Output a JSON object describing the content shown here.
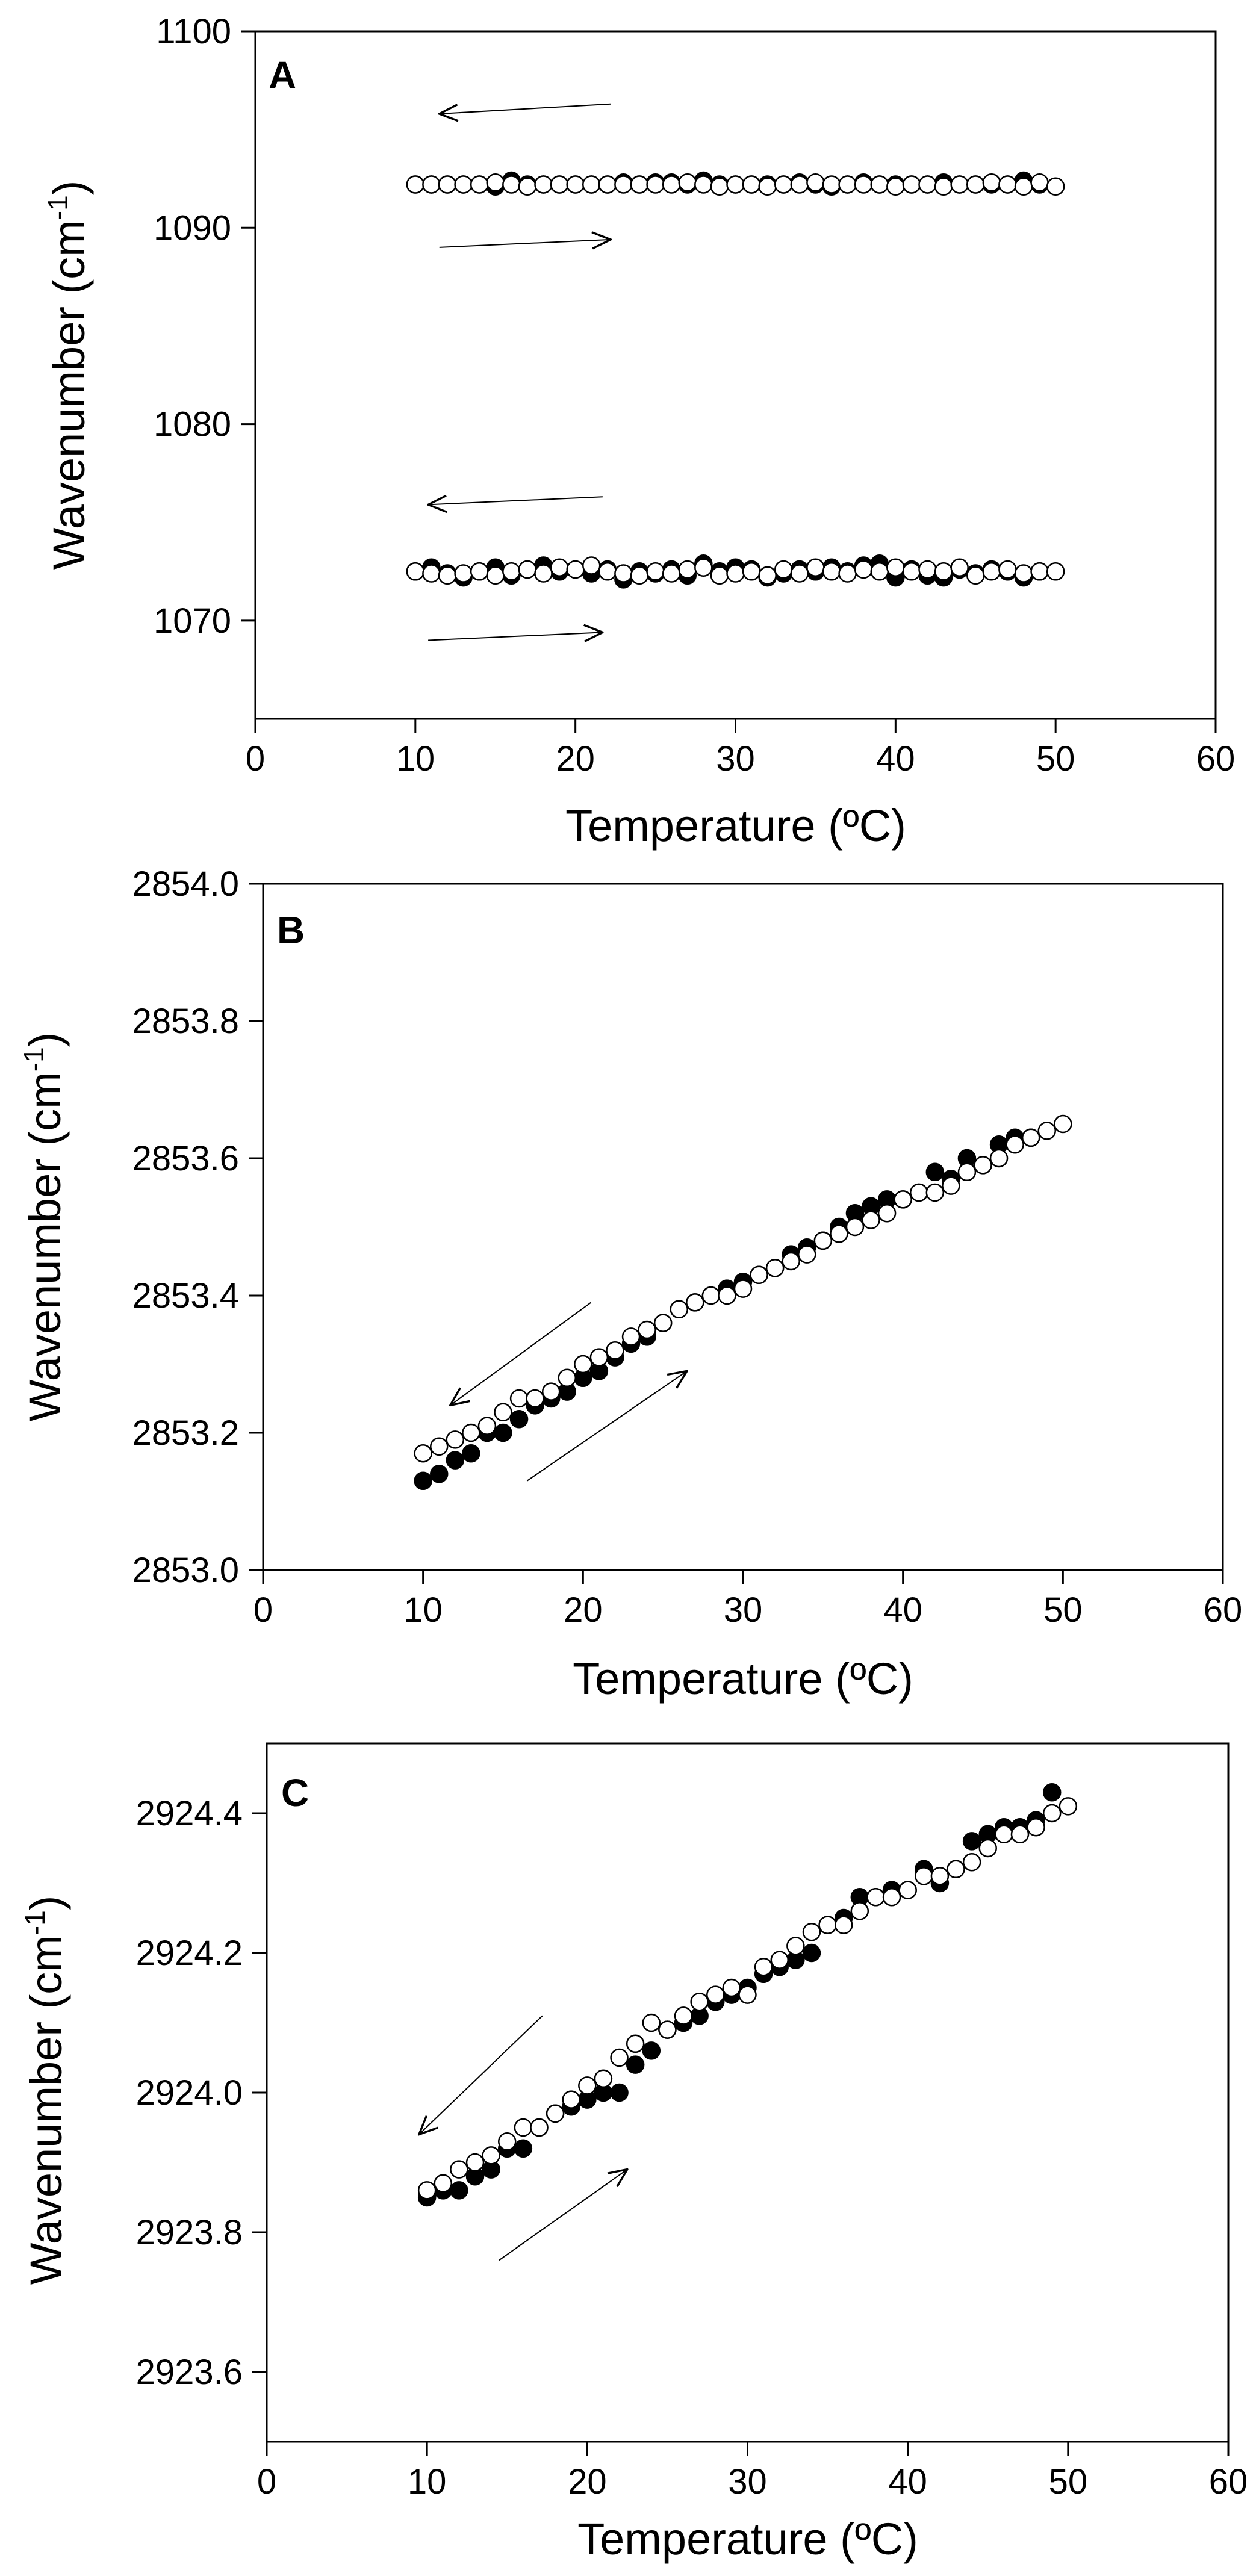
{
  "figure": {
    "description_labels": [
      "A",
      "B",
      "C"
    ]
  },
  "chart_data": [
    {
      "type": "scatter",
      "panel_label": "A",
      "xlabel": "Temperature (ºC)",
      "ylabel_main": "Wavenumber (cm",
      "ylabel_sup": "-1",
      "ylabel_close": ")",
      "xlim": [
        0,
        60
      ],
      "ylim": [
        1065,
        1100
      ],
      "xticks": [
        0,
        10,
        20,
        30,
        40,
        50,
        60
      ],
      "yticks": [
        1070,
        1080,
        1090,
        1100
      ],
      "yticks_labels": [
        "1070",
        "1080",
        "1090",
        "1100"
      ],
      "arrows": [
        {
          "direction": "cooling",
          "from": [
            22.2,
            1096.3
          ],
          "to": [
            11.5,
            1095.8
          ]
        },
        {
          "direction": "heating",
          "from": [
            11.5,
            1089.0
          ],
          "to": [
            22.2,
            1089.4
          ]
        },
        {
          "direction": "cooling",
          "from": [
            21.7,
            1076.3
          ],
          "to": [
            10.8,
            1075.9
          ]
        },
        {
          "direction": "heating",
          "from": [
            10.8,
            1069.0
          ],
          "to": [
            21.7,
            1069.4
          ]
        }
      ],
      "series": [
        {
          "name": "heating (filled, upper band)",
          "marker": "filled",
          "x": [
            10,
            11,
            12,
            13,
            14,
            15,
            16,
            17,
            18,
            19,
            20,
            21,
            22,
            23,
            24,
            25,
            26,
            27,
            28,
            29,
            30,
            31,
            32,
            33,
            34,
            35,
            36,
            37,
            38,
            39,
            40,
            41,
            42,
            43,
            44,
            45,
            46,
            47,
            48,
            49
          ],
          "y": [
            1092.2,
            1092.2,
            1092.2,
            1092.2,
            1092.2,
            1092.1,
            1092.4,
            1092.2,
            1092.2,
            1092.2,
            1092.2,
            1092.2,
            1092.2,
            1092.3,
            1092.2,
            1092.3,
            1092.3,
            1092.2,
            1092.4,
            1092.2,
            1092.2,
            1092.2,
            1092.2,
            1092.2,
            1092.3,
            1092.2,
            1092.1,
            1092.2,
            1092.3,
            1092.2,
            1092.2,
            1092.2,
            1092.2,
            1092.3,
            1092.2,
            1092.2,
            1092.2,
            1092.2,
            1092.4,
            1092.2
          ]
        },
        {
          "name": "cooling (open, upper band)",
          "marker": "open",
          "x": [
            10,
            11,
            12,
            13,
            14,
            15,
            16,
            17,
            18,
            19,
            20,
            21,
            22,
            23,
            24,
            25,
            26,
            27,
            28,
            29,
            30,
            31,
            32,
            33,
            34,
            35,
            36,
            37,
            38,
            39,
            40,
            41,
            42,
            43,
            44,
            45,
            46,
            47,
            48,
            49,
            50
          ],
          "y": [
            1092.2,
            1092.2,
            1092.2,
            1092.2,
            1092.2,
            1092.3,
            1092.2,
            1092.1,
            1092.2,
            1092.2,
            1092.2,
            1092.2,
            1092.2,
            1092.2,
            1092.2,
            1092.2,
            1092.2,
            1092.3,
            1092.2,
            1092.1,
            1092.2,
            1092.2,
            1092.1,
            1092.2,
            1092.2,
            1092.3,
            1092.2,
            1092.2,
            1092.2,
            1092.2,
            1092.1,
            1092.2,
            1092.2,
            1092.1,
            1092.2,
            1092.2,
            1092.3,
            1092.2,
            1092.1,
            1092.3,
            1092.1
          ]
        },
        {
          "name": "heating (filled, lower band)",
          "marker": "filled",
          "x": [
            10,
            11,
            12,
            13,
            14,
            15,
            16,
            17,
            18,
            19,
            20,
            21,
            22,
            23,
            24,
            25,
            26,
            27,
            28,
            29,
            30,
            31,
            32,
            33,
            34,
            35,
            36,
            37,
            38,
            39,
            40,
            41,
            42,
            43,
            44,
            45,
            46,
            47,
            48,
            49
          ],
          "y": [
            1072.5,
            1072.7,
            1072.4,
            1072.2,
            1072.5,
            1072.7,
            1072.3,
            1072.6,
            1072.8,
            1072.5,
            1072.6,
            1072.4,
            1072.6,
            1072.1,
            1072.5,
            1072.4,
            1072.6,
            1072.3,
            1072.9,
            1072.5,
            1072.7,
            1072.6,
            1072.2,
            1072.4,
            1072.6,
            1072.5,
            1072.7,
            1072.5,
            1072.8,
            1072.9,
            1072.2,
            1072.6,
            1072.3,
            1072.2,
            1072.6,
            1072.4,
            1072.6,
            1072.5,
            1072.2,
            1072.5
          ]
        },
        {
          "name": "cooling (open, lower band)",
          "marker": "open",
          "x": [
            10,
            11,
            12,
            13,
            14,
            15,
            16,
            17,
            18,
            19,
            20,
            21,
            22,
            23,
            24,
            25,
            26,
            27,
            28,
            29,
            30,
            31,
            32,
            33,
            34,
            35,
            36,
            37,
            38,
            39,
            40,
            41,
            42,
            43,
            44,
            45,
            46,
            47,
            48,
            49,
            50
          ],
          "y": [
            1072.5,
            1072.4,
            1072.3,
            1072.4,
            1072.5,
            1072.3,
            1072.5,
            1072.6,
            1072.4,
            1072.7,
            1072.6,
            1072.8,
            1072.5,
            1072.4,
            1072.3,
            1072.5,
            1072.4,
            1072.6,
            1072.7,
            1072.3,
            1072.4,
            1072.5,
            1072.3,
            1072.6,
            1072.4,
            1072.7,
            1072.5,
            1072.4,
            1072.6,
            1072.5,
            1072.7,
            1072.5,
            1072.6,
            1072.5,
            1072.7,
            1072.3,
            1072.5,
            1072.6,
            1072.4,
            1072.5,
            1072.5
          ]
        }
      ]
    },
    {
      "type": "scatter",
      "panel_label": "B",
      "xlabel": "Temperature (ºC)",
      "ylabel_main": "Wavenumber (cm",
      "ylabel_sup": "-1",
      "ylabel_close": ")",
      "xlim": [
        0,
        60
      ],
      "ylim": [
        2853.0,
        2854.0
      ],
      "xticks": [
        0,
        10,
        20,
        30,
        40,
        50,
        60
      ],
      "yticks": [
        2853.0,
        2853.2,
        2853.4,
        2853.6,
        2853.8,
        2854.0
      ],
      "yticks_labels": [
        "2853.0",
        "2853.2",
        "2853.4",
        "2853.6",
        "2853.8",
        "2854.0"
      ],
      "arrows": [
        {
          "direction": "cooling",
          "from": [
            20.5,
            2853.39
          ],
          "to": [
            11.7,
            2853.24
          ]
        },
        {
          "direction": "heating",
          "from": [
            16.5,
            2853.13
          ],
          "to": [
            26.5,
            2853.29
          ]
        }
      ],
      "series": [
        {
          "name": "heating (filled)",
          "marker": "filled",
          "x": [
            10,
            11,
            12,
            13,
            14,
            15,
            16,
            17,
            18,
            19,
            20,
            21,
            22,
            23,
            24,
            25,
            26,
            27,
            28,
            29,
            30,
            31,
            32,
            33,
            34,
            35,
            36,
            37,
            38,
            39,
            40,
            41,
            42,
            43,
            44,
            45,
            46,
            47,
            48
          ],
          "y": [
            2853.13,
            2853.14,
            2853.16,
            2853.17,
            2853.2,
            2853.2,
            2853.22,
            2853.24,
            2853.25,
            2853.26,
            2853.28,
            2853.29,
            2853.31,
            2853.33,
            2853.34,
            2853.36,
            2853.38,
            2853.39,
            2853.4,
            2853.41,
            2853.42,
            2853.43,
            2853.44,
            2853.46,
            2853.47,
            2853.48,
            2853.5,
            2853.52,
            2853.53,
            2853.54,
            2853.54,
            2853.55,
            2853.58,
            2853.57,
            2853.6,
            2853.59,
            2853.62,
            2853.63,
            2853.63
          ]
        },
        {
          "name": "cooling (open)",
          "marker": "open",
          "x": [
            10,
            11,
            12,
            13,
            14,
            15,
            16,
            17,
            18,
            19,
            20,
            21,
            22,
            23,
            24,
            25,
            26,
            27,
            28,
            29,
            30,
            31,
            32,
            33,
            34,
            35,
            36,
            37,
            38,
            39,
            40,
            41,
            42,
            43,
            44,
            45,
            46,
            47,
            48,
            49,
            50
          ],
          "y": [
            2853.17,
            2853.18,
            2853.19,
            2853.2,
            2853.21,
            2853.23,
            2853.25,
            2853.25,
            2853.26,
            2853.28,
            2853.3,
            2853.31,
            2853.32,
            2853.34,
            2853.35,
            2853.36,
            2853.38,
            2853.39,
            2853.4,
            2853.4,
            2853.41,
            2853.43,
            2853.44,
            2853.45,
            2853.46,
            2853.48,
            2853.49,
            2853.5,
            2853.51,
            2853.52,
            2853.54,
            2853.55,
            2853.55,
            2853.56,
            2853.58,
            2853.59,
            2853.6,
            2853.62,
            2853.63,
            2853.64,
            2853.65
          ]
        }
      ]
    },
    {
      "type": "scatter",
      "panel_label": "C",
      "xlabel": "Temperature (ºC)",
      "ylabel_main": "Wavenumber (cm",
      "ylabel_sup": "-1",
      "ylabel_close": ")",
      "xlim": [
        0,
        60
      ],
      "ylim": [
        2923.5,
        2924.5
      ],
      "xticks": [
        0,
        10,
        20,
        30,
        40,
        50,
        60
      ],
      "yticks": [
        2923.6,
        2923.8,
        2924.0,
        2924.2,
        2924.4
      ],
      "yticks_labels": [
        "2923.6",
        "2923.8",
        "2924.0",
        "2924.2",
        "2924.4"
      ],
      "arrows": [
        {
          "direction": "cooling",
          "from": [
            17.2,
            2924.11
          ],
          "to": [
            9.5,
            2923.94
          ]
        },
        {
          "direction": "heating",
          "from": [
            14.5,
            2923.76
          ],
          "to": [
            22.5,
            2923.89
          ]
        }
      ],
      "series": [
        {
          "name": "heating (filled)",
          "marker": "filled",
          "x": [
            10,
            11,
            12,
            13,
            14,
            15,
            16,
            17,
            18,
            19,
            20,
            21,
            22,
            23,
            24,
            25,
            26,
            27,
            28,
            29,
            30,
            31,
            32,
            33,
            34,
            35,
            36,
            37,
            38,
            39,
            40,
            41,
            42,
            43,
            44,
            45,
            46,
            47,
            48,
            49
          ],
          "y": [
            2923.85,
            2923.86,
            2923.86,
            2923.88,
            2923.89,
            2923.92,
            2923.92,
            2923.95,
            2923.97,
            2923.98,
            2923.99,
            2924.0,
            2924.0,
            2924.04,
            2924.06,
            2924.09,
            2924.1,
            2924.11,
            2924.13,
            2924.14,
            2924.15,
            2924.17,
            2924.18,
            2924.19,
            2924.2,
            2924.24,
            2924.25,
            2924.28,
            2924.28,
            2924.29,
            2924.29,
            2924.32,
            2924.3,
            2924.32,
            2924.36,
            2924.37,
            2924.38,
            2924.38,
            2924.39,
            2924.43
          ]
        },
        {
          "name": "cooling (open)",
          "marker": "open",
          "x": [
            10,
            11,
            12,
            13,
            14,
            15,
            16,
            17,
            18,
            19,
            20,
            21,
            22,
            23,
            24,
            25,
            26,
            27,
            28,
            29,
            30,
            31,
            32,
            33,
            34,
            35,
            36,
            37,
            38,
            39,
            40,
            41,
            42,
            43,
            44,
            45,
            46,
            47,
            48,
            49,
            50
          ],
          "y": [
            2923.86,
            2923.87,
            2923.89,
            2923.9,
            2923.91,
            2923.93,
            2923.95,
            2923.95,
            2923.97,
            2923.99,
            2924.01,
            2924.02,
            2924.05,
            2924.07,
            2924.1,
            2924.09,
            2924.11,
            2924.13,
            2924.14,
            2924.15,
            2924.14,
            2924.18,
            2924.19,
            2924.21,
            2924.23,
            2924.24,
            2924.24,
            2924.26,
            2924.28,
            2924.28,
            2924.29,
            2924.31,
            2924.31,
            2924.32,
            2924.33,
            2924.35,
            2924.37,
            2924.37,
            2924.38,
            2924.4,
            2924.41
          ]
        }
      ]
    }
  ]
}
